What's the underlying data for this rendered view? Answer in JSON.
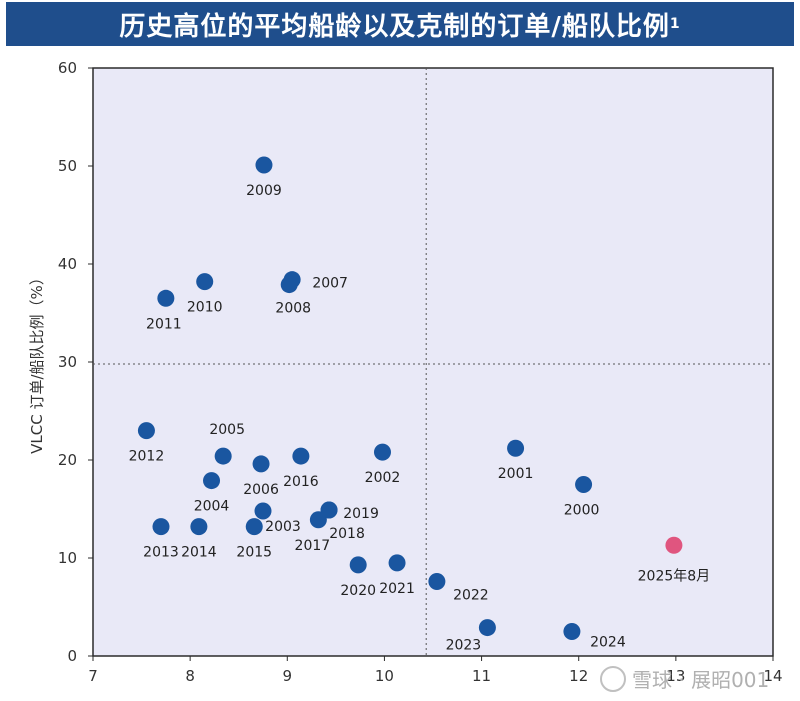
{
  "header": {
    "title": "历史高位的平均船龄以及克制的订单/船队比例",
    "footnote": "1"
  },
  "chart_data": {
    "type": "scatter",
    "title": "历史高位的平均船龄以及克制的订单/船队比例",
    "xlabel": "",
    "ylabel": "VLCC 订单/船队比例（%）",
    "xlim": [
      7,
      14
    ],
    "ylim": [
      0,
      60
    ],
    "xticks": [
      7,
      8,
      9,
      10,
      11,
      12,
      13,
      14
    ],
    "yticks": [
      0,
      10,
      20,
      30,
      40,
      50,
      60
    ],
    "reference_lines": {
      "x": 10.43,
      "y": 29.8
    },
    "colors": {
      "plot_bg": "#e9e9f7",
      "point": "#1a56a0",
      "highlight": "#e0557f",
      "title_bg": "#1f4e8c"
    },
    "points": [
      {
        "label": "2000",
        "x": 12.05,
        "y": 17.5
      },
      {
        "label": "2001",
        "x": 11.35,
        "y": 21.2
      },
      {
        "label": "2002",
        "x": 9.98,
        "y": 20.8
      },
      {
        "label": "2003",
        "x": 8.75,
        "y": 14.8
      },
      {
        "label": "2004",
        "x": 8.22,
        "y": 17.9
      },
      {
        "label": "2005",
        "x": 8.34,
        "y": 20.4
      },
      {
        "label": "2006",
        "x": 8.73,
        "y": 19.6
      },
      {
        "label": "2007",
        "x": 9.05,
        "y": 38.4
      },
      {
        "label": "2008",
        "x": 9.02,
        "y": 37.9
      },
      {
        "label": "2009",
        "x": 8.76,
        "y": 50.1
      },
      {
        "label": "2010",
        "x": 8.15,
        "y": 38.2
      },
      {
        "label": "2011",
        "x": 7.75,
        "y": 36.5
      },
      {
        "label": "2012",
        "x": 7.55,
        "y": 23.0
      },
      {
        "label": "2013",
        "x": 7.7,
        "y": 13.2
      },
      {
        "label": "2014",
        "x": 8.09,
        "y": 13.2
      },
      {
        "label": "2015",
        "x": 8.66,
        "y": 13.2
      },
      {
        "label": "2016",
        "x": 9.14,
        "y": 20.4
      },
      {
        "label": "2017",
        "x": 9.32,
        "y": 13.9
      },
      {
        "label": "2018",
        "x": 9.43,
        "y": 14.9
      },
      {
        "label": "2019",
        "x": 9.43,
        "y": 14.9
      },
      {
        "label": "2020",
        "x": 9.73,
        "y": 9.3
      },
      {
        "label": "2021",
        "x": 10.13,
        "y": 9.5
      },
      {
        "label": "2022",
        "x": 10.54,
        "y": 7.6
      },
      {
        "label": "2023",
        "x": 11.06,
        "y": 2.9
      },
      {
        "label": "2024",
        "x": 11.93,
        "y": 2.5
      },
      {
        "label": "2025年8月",
        "x": 12.98,
        "y": 11.3,
        "highlight": true
      }
    ]
  },
  "watermark": {
    "text": "雪球 · 展昭001"
  }
}
